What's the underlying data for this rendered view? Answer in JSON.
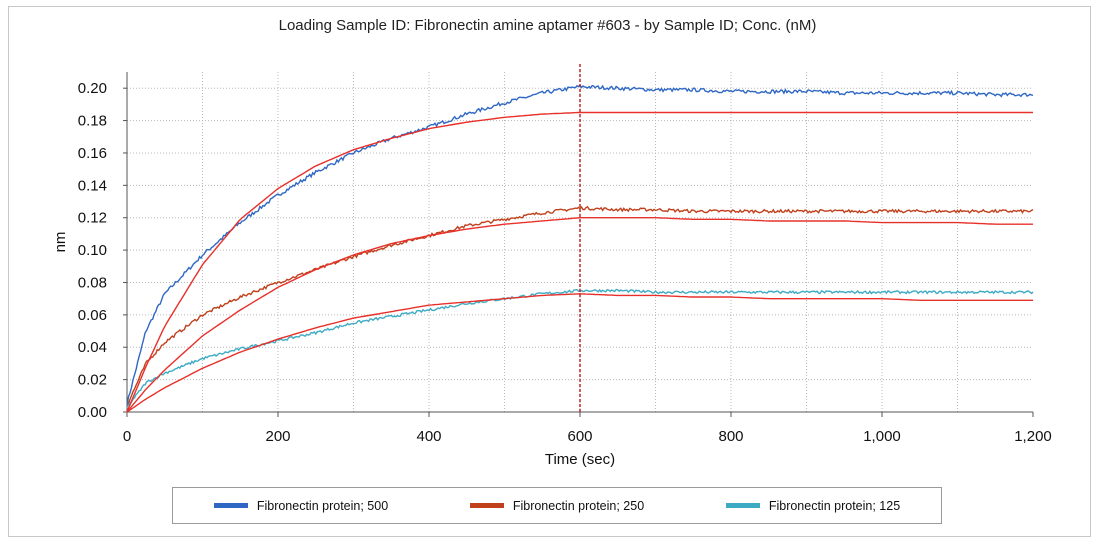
{
  "chart_data": {
    "type": "line",
    "title": "Loading Sample ID: Fibronectin amine aptamer #603 - by Sample ID; Conc. (nM)",
    "xlabel": "Time (sec)",
    "ylabel": "nm",
    "xlim": [
      0,
      1200
    ],
    "ylim": [
      0,
      0.21
    ],
    "x_ticks": [
      0,
      200,
      400,
      600,
      800,
      1000,
      1200
    ],
    "x_tick_labels": [
      "0",
      "200",
      "400",
      "600",
      "800",
      "1,000",
      "1,200"
    ],
    "y_ticks": [
      0.0,
      0.02,
      0.04,
      0.06,
      0.08,
      0.1,
      0.12,
      0.14,
      0.16,
      0.18,
      0.2
    ],
    "y_tick_labels": [
      "0.00",
      "0.02",
      "0.04",
      "0.06",
      "0.08",
      "0.10",
      "0.12",
      "0.14",
      "0.16",
      "0.18",
      "0.20"
    ],
    "grid": true,
    "legend_position": "bottom",
    "vertical_marker_x": 600,
    "fit_color": "#e8302a",
    "series": [
      {
        "name": "Fibronectin protein; 500",
        "color": "#2f68c4",
        "x": [
          0,
          25,
          50,
          100,
          150,
          200,
          250,
          300,
          350,
          400,
          450,
          500,
          550,
          600,
          650,
          700,
          750,
          800,
          850,
          900,
          950,
          1000,
          1050,
          1100,
          1150,
          1200
        ],
        "values": [
          0.005,
          0.05,
          0.073,
          0.097,
          0.117,
          0.134,
          0.148,
          0.16,
          0.169,
          0.176,
          0.184,
          0.191,
          0.197,
          0.201,
          0.2,
          0.199,
          0.199,
          0.198,
          0.198,
          0.198,
          0.197,
          0.197,
          0.197,
          0.197,
          0.196,
          0.196
        ],
        "fit": [
          0.0,
          0.028,
          0.053,
          0.091,
          0.119,
          0.138,
          0.152,
          0.162,
          0.169,
          0.175,
          0.179,
          0.182,
          0.184,
          0.185,
          0.185,
          0.185,
          0.185,
          0.185,
          0.185,
          0.185,
          0.185,
          0.185,
          0.185,
          0.185,
          0.185,
          0.185
        ]
      },
      {
        "name": "Fibronectin protein; 250",
        "color": "#c0401b",
        "x": [
          0,
          25,
          50,
          100,
          150,
          200,
          250,
          300,
          350,
          400,
          450,
          500,
          550,
          600,
          650,
          700,
          750,
          800,
          850,
          900,
          950,
          1000,
          1050,
          1100,
          1150,
          1200
        ],
        "values": [
          0.004,
          0.03,
          0.043,
          0.06,
          0.071,
          0.08,
          0.088,
          0.096,
          0.103,
          0.109,
          0.115,
          0.119,
          0.123,
          0.126,
          0.125,
          0.125,
          0.124,
          0.124,
          0.124,
          0.124,
          0.124,
          0.124,
          0.124,
          0.124,
          0.124,
          0.124
        ],
        "fit": [
          0.0,
          0.014,
          0.026,
          0.047,
          0.063,
          0.077,
          0.088,
          0.097,
          0.104,
          0.109,
          0.113,
          0.116,
          0.118,
          0.12,
          0.12,
          0.12,
          0.119,
          0.119,
          0.118,
          0.118,
          0.118,
          0.117,
          0.117,
          0.117,
          0.116,
          0.116
        ]
      },
      {
        "name": "Fibronectin protein; 125",
        "color": "#3eabc4",
        "x": [
          0,
          25,
          50,
          100,
          150,
          200,
          250,
          300,
          350,
          400,
          450,
          500,
          550,
          600,
          650,
          700,
          750,
          800,
          850,
          900,
          950,
          1000,
          1050,
          1100,
          1150,
          1200
        ],
        "values": [
          0.003,
          0.018,
          0.024,
          0.033,
          0.039,
          0.044,
          0.049,
          0.055,
          0.059,
          0.063,
          0.067,
          0.07,
          0.073,
          0.075,
          0.075,
          0.074,
          0.074,
          0.074,
          0.074,
          0.074,
          0.074,
          0.074,
          0.074,
          0.074,
          0.074,
          0.074
        ],
        "fit": [
          0.0,
          0.008,
          0.015,
          0.027,
          0.037,
          0.045,
          0.052,
          0.058,
          0.062,
          0.066,
          0.068,
          0.07,
          0.072,
          0.073,
          0.072,
          0.072,
          0.071,
          0.071,
          0.07,
          0.07,
          0.07,
          0.07,
          0.069,
          0.069,
          0.069,
          0.069
        ]
      }
    ]
  }
}
